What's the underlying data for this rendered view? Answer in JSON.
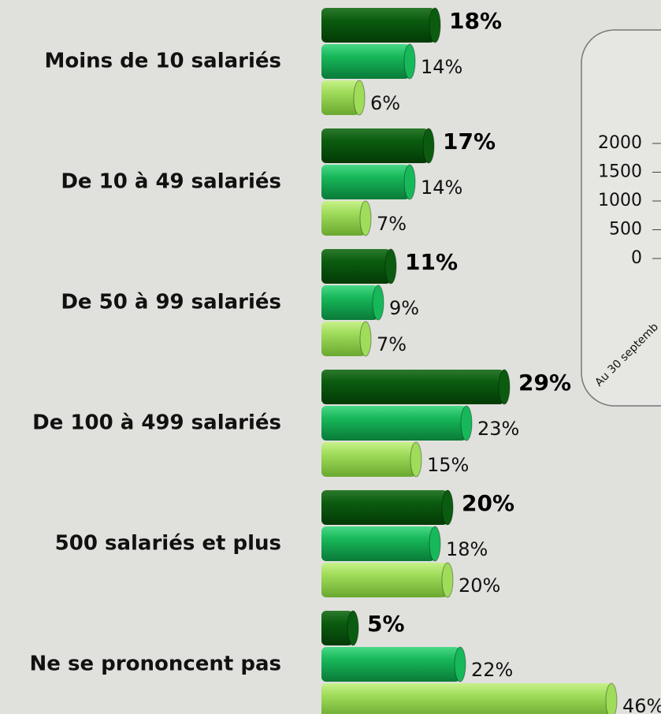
{
  "chart_data": [
    {
      "type": "hbar",
      "categories": [
        "Moins de 10 salariés",
        "De 10 à 49 salariés",
        "De 50 à 99 salariés",
        "De 100 à 499 salariés",
        "500 salariés et plus",
        "Ne se prononcent pas"
      ],
      "series": [
        {
          "color": "#0b5c10",
          "values": [
            18,
            17,
            11,
            29,
            20,
            5
          ],
          "value_labels": [
            "18%",
            "17%",
            "11%",
            "29%",
            "20%",
            "5%"
          ]
        },
        {
          "color": "#17b85a",
          "values": [
            14,
            14,
            9,
            23,
            18,
            22
          ],
          "value_labels": [
            "14%",
            "14%",
            "9%",
            "23%",
            "18%",
            "22%"
          ]
        },
        {
          "color": "#9fdc5a",
          "values": [
            6,
            7,
            7,
            15,
            20,
            46
          ],
          "value_labels": [
            "6%",
            "7%",
            "7%",
            "15%",
            "20%",
            "46%"
          ]
        }
      ]
    },
    {
      "type": "bar",
      "categories": [
        "Au 30 septemb"
      ],
      "values": [
        null
      ],
      "ylim": [
        0,
        2000
      ],
      "yticks": [
        0,
        500,
        1000,
        1500,
        2000
      ]
    }
  ]
}
